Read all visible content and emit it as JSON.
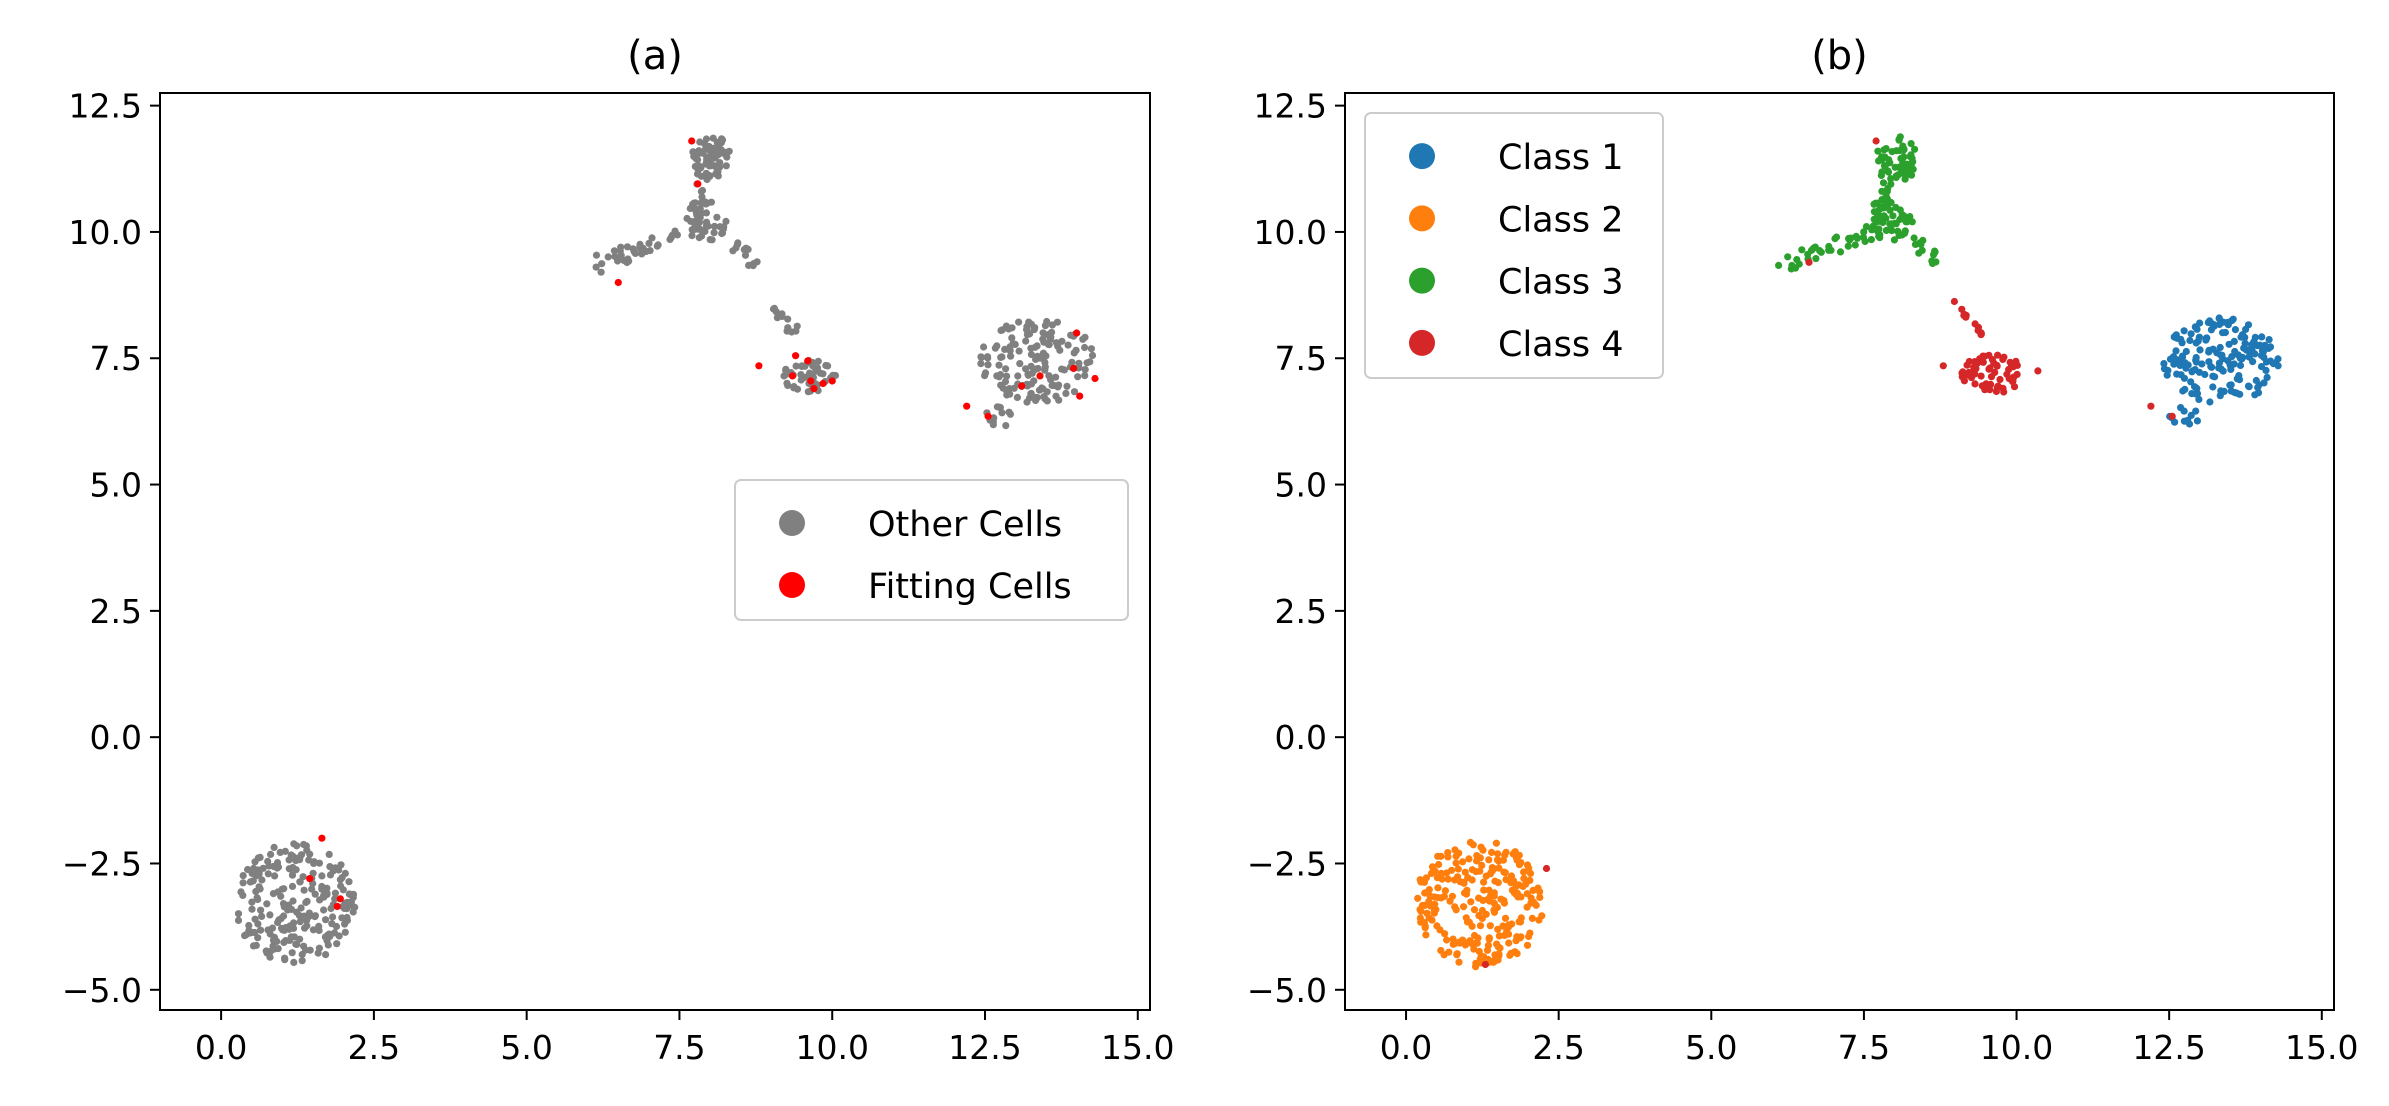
{
  "chart_data": [
    {
      "type": "scatter",
      "title": "(a)",
      "xlim": [
        -1.0,
        15.2
      ],
      "ylim": [
        -5.4,
        12.75
      ],
      "xticks": [
        "0.0",
        "2.5",
        "5.0",
        "7.5",
        "10.0",
        "12.5",
        "15.0"
      ],
      "yticks": [
        "−5.0",
        "−2.5",
        "0.0",
        "2.5",
        "5.0",
        "7.5",
        "10.0",
        "12.5"
      ],
      "legend_position": "center-right",
      "series": [
        {
          "name": "Other Cells",
          "color": "#808080",
          "clusters": [
            {
              "shape": "disc",
              "center": [
                1.2,
                -3.3
              ],
              "radius": [
                1.0,
                1.2
              ],
              "count": 230
            },
            {
              "shape": "disc",
              "center": [
                13.35,
                7.45
              ],
              "radius": [
                0.95,
                0.85
              ],
              "count": 150
            },
            {
              "shape": "disc",
              "center": [
                12.75,
                6.35
              ],
              "radius": [
                0.25,
                0.2
              ],
              "count": 12
            },
            {
              "shape": "disc",
              "center": [
                8.05,
                11.45
              ],
              "radius": [
                0.35,
                0.45
              ],
              "count": 55
            },
            {
              "shape": "line",
              "from": [
                7.7,
                10.0
              ],
              "to": [
                7.9,
                11.1
              ],
              "spread": 0.12,
              "count": 20
            },
            {
              "shape": "disc",
              "center": [
                7.95,
                10.2
              ],
              "radius": [
                0.35,
                0.4
              ],
              "count": 40
            },
            {
              "shape": "line",
              "from": [
                6.2,
                9.35
              ],
              "to": [
                7.6,
                10.0
              ],
              "spread": 0.15,
              "count": 35
            },
            {
              "shape": "line",
              "from": [
                8.3,
                9.9
              ],
              "to": [
                8.8,
                9.3
              ],
              "spread": 0.12,
              "count": 14
            },
            {
              "shape": "line",
              "from": [
                9.0,
                8.6
              ],
              "to": [
                9.4,
                8.0
              ],
              "spread": 0.08,
              "count": 12
            },
            {
              "shape": "disc",
              "center": [
                9.65,
                7.15
              ],
              "radius": [
                0.45,
                0.35
              ],
              "count": 50
            }
          ]
        },
        {
          "name": "Fitting Cells",
          "color": "#ff0000",
          "points": [
            [
              7.7,
              11.8
            ],
            [
              7.8,
              10.95
            ],
            [
              6.5,
              9.0
            ],
            [
              8.8,
              7.35
            ],
            [
              9.4,
              7.55
            ],
            [
              9.6,
              7.45
            ],
            [
              9.35,
              7.15
            ],
            [
              9.65,
              7.05
            ],
            [
              9.85,
              7.0
            ],
            [
              10.0,
              7.05
            ],
            [
              9.7,
              6.9
            ],
            [
              13.1,
              6.95
            ],
            [
              13.4,
              7.15
            ],
            [
              13.95,
              7.3
            ],
            [
              14.05,
              6.75
            ],
            [
              14.3,
              7.1
            ],
            [
              12.2,
              6.55
            ],
            [
              12.55,
              6.35
            ],
            [
              14.0,
              8.0
            ],
            [
              1.65,
              -2.0
            ],
            [
              1.45,
              -2.8
            ],
            [
              1.95,
              -3.2
            ],
            [
              1.9,
              -3.35
            ]
          ]
        }
      ]
    },
    {
      "type": "scatter",
      "title": "(b)",
      "xlim": [
        -1.0,
        15.2
      ],
      "ylim": [
        -5.4,
        12.75
      ],
      "xticks": [
        "0.0",
        "2.5",
        "5.0",
        "7.5",
        "10.0",
        "12.5",
        "15.0"
      ],
      "yticks": [
        "−5.0",
        "−2.5",
        "0.0",
        "2.5",
        "5.0",
        "7.5",
        "10.0",
        "12.5"
      ],
      "legend_position": "upper-left",
      "series": [
        {
          "name": "Class 1",
          "color": "#1f77b4",
          "clusters": [
            {
              "shape": "disc",
              "center": [
                13.35,
                7.45
              ],
              "radius": [
                0.95,
                0.85
              ],
              "count": 170
            },
            {
              "shape": "disc",
              "center": [
                12.75,
                6.35
              ],
              "radius": [
                0.25,
                0.2
              ],
              "count": 12
            }
          ]
        },
        {
          "name": "Class 2",
          "color": "#ff7f0e",
          "clusters": [
            {
              "shape": "disc",
              "center": [
                1.2,
                -3.3
              ],
              "radius": [
                1.05,
                1.25
              ],
              "count": 250
            }
          ]
        },
        {
          "name": "Class 3",
          "color": "#2ca02c",
          "clusters": [
            {
              "shape": "disc",
              "center": [
                8.05,
                11.45
              ],
              "radius": [
                0.35,
                0.45
              ],
              "count": 55
            },
            {
              "shape": "line",
              "from": [
                7.7,
                10.0
              ],
              "to": [
                7.9,
                11.1
              ],
              "spread": 0.12,
              "count": 20
            },
            {
              "shape": "disc",
              "center": [
                7.95,
                10.2
              ],
              "radius": [
                0.35,
                0.4
              ],
              "count": 40
            },
            {
              "shape": "line",
              "from": [
                6.2,
                9.35
              ],
              "to": [
                7.6,
                10.0
              ],
              "spread": 0.15,
              "count": 35
            },
            {
              "shape": "line",
              "from": [
                8.3,
                9.9
              ],
              "to": [
                8.8,
                9.3
              ],
              "spread": 0.12,
              "count": 14
            }
          ]
        },
        {
          "name": "Class 4",
          "color": "#d62728",
          "clusters": [
            {
              "shape": "line",
              "from": [
                9.0,
                8.6
              ],
              "to": [
                9.4,
                8.0
              ],
              "spread": 0.08,
              "count": 14
            },
            {
              "shape": "disc",
              "center": [
                9.6,
                7.2
              ],
              "radius": [
                0.5,
                0.4
              ],
              "count": 60
            }
          ],
          "points": [
            [
              8.8,
              7.35
            ],
            [
              10.35,
              7.25
            ],
            [
              12.2,
              6.55
            ],
            [
              12.55,
              6.35
            ],
            [
              7.7,
              11.8
            ],
            [
              6.6,
              9.4
            ],
            [
              2.3,
              -2.6
            ],
            [
              1.3,
              -4.5
            ]
          ]
        }
      ]
    }
  ]
}
